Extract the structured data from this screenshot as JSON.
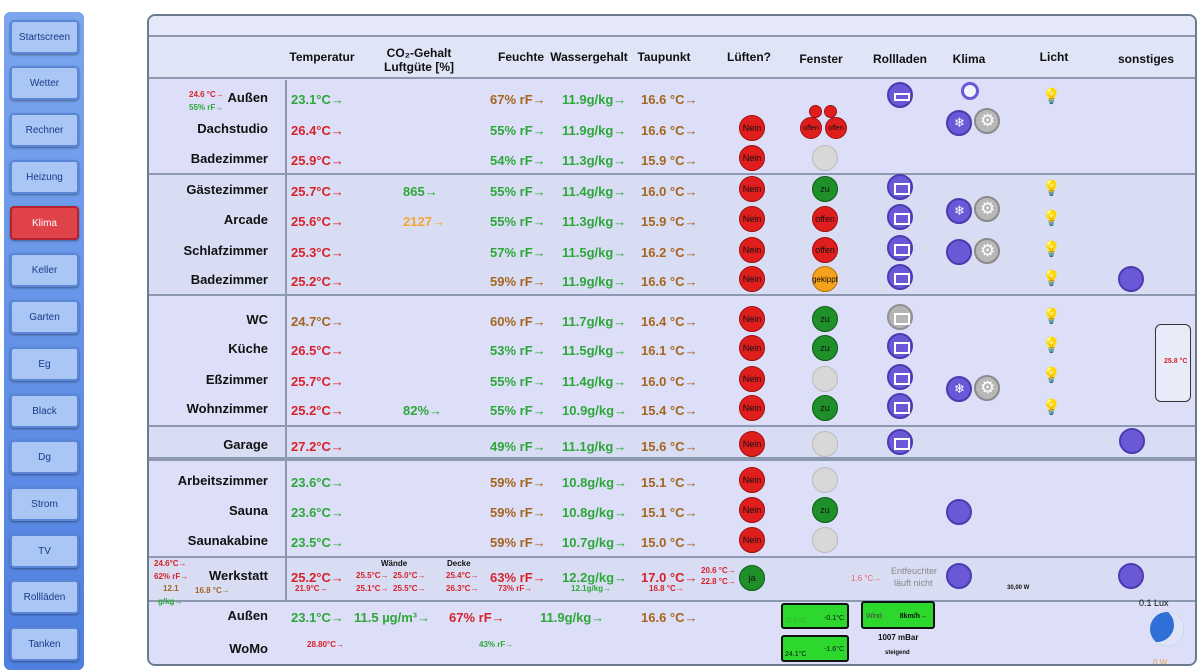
{
  "sidebar": {
    "items": [
      {
        "label": "Startscreen",
        "active": false
      },
      {
        "label": "Wetter",
        "active": false
      },
      {
        "label": "Rechner",
        "active": false
      },
      {
        "label": "Heizung",
        "active": false
      },
      {
        "label": "Klima",
        "active": true
      },
      {
        "label": "Keller",
        "active": false
      },
      {
        "label": "Garten",
        "active": false
      },
      {
        "label": "Eg",
        "active": false
      },
      {
        "label": "Black",
        "active": false
      },
      {
        "label": "Dg",
        "active": false
      },
      {
        "label": "Strom",
        "active": false
      },
      {
        "label": "TV",
        "active": false
      },
      {
        "label": "Rollläden",
        "active": false
      },
      {
        "label": "Tanken",
        "active": false
      }
    ]
  },
  "headers": {
    "temperatur": "Temperatur",
    "co2_line1": "CO₂-Gehalt",
    "co2_line2": "Luftgüte [%]",
    "feuchte": "Feuchte",
    "wassergehalt": "Wassergehalt",
    "taupunkt": "Taupunkt",
    "lueften": "Lüften?",
    "fenster": "Fenster",
    "rollladen": "Rollladen",
    "klima": "Klima",
    "licht": "Licht",
    "sonstiges": "sonstiges"
  },
  "rows": [
    {
      "room": "Außen",
      "temp": "23.1°C→",
      "temp_color": "green",
      "co2": "",
      "feuchte": "67% rF→",
      "feuchte_color": "brown",
      "wg": "11.9g/kg→",
      "tau": "16.6 °C→",
      "lueften": "",
      "fenster": "",
      "extra_temp": "24.6 °C→",
      "extra_hum": "55% rF→"
    },
    {
      "room": "Dachstudio",
      "temp": "26.4°C→",
      "temp_color": "red",
      "co2": "",
      "feuchte": "55% rF→",
      "feuchte_color": "green",
      "wg": "11.9g/kg→",
      "tau": "16.6 °C→",
      "lueften": "Nein",
      "fenster": "multi"
    },
    {
      "room": "Badezimmer",
      "temp": "25.9°C→",
      "temp_color": "red",
      "co2": "",
      "feuchte": "54% rF→",
      "feuchte_color": "green",
      "wg": "11.3g/kg→",
      "tau": "15.9 °C→",
      "lueften": "Nein",
      "fenster": "none"
    },
    {
      "room": "Gästezimmer",
      "temp": "25.7°C→",
      "temp_color": "red",
      "co2": "865→",
      "co2_color": "green",
      "feuchte": "55% rF→",
      "feuchte_color": "green",
      "wg": "11.4g/kg→",
      "tau": "16.0 °C→",
      "lueften": "Nein",
      "fenster": "zu"
    },
    {
      "room": "Arcade",
      "temp": "25.6°C→",
      "temp_color": "red",
      "co2": "2127→",
      "co2_color": "orange",
      "feuchte": "55% rF→",
      "feuchte_color": "green",
      "wg": "11.3g/kg→",
      "tau": "15.9 °C→",
      "lueften": "Nein",
      "fenster": "offen"
    },
    {
      "room": "Schlafzimmer",
      "temp": "25.3°C→",
      "temp_color": "red",
      "co2": "",
      "feuchte": "57% rF→",
      "feuchte_color": "green",
      "wg": "11.5g/kg→",
      "tau": "16.2 °C→",
      "lueften": "Nein",
      "fenster": "offen"
    },
    {
      "room": "Badezimmer",
      "temp": "25.2°C→",
      "temp_color": "red",
      "co2": "",
      "feuchte": "59% rF→",
      "feuchte_color": "brown",
      "wg": "11.9g/kg→",
      "tau": "16.6 °C→",
      "lueften": "Nein",
      "fenster": "gekippt"
    },
    {
      "room": "WC",
      "temp": "24.7°C→",
      "temp_color": "brown",
      "co2": "",
      "feuchte": "60% rF→",
      "feuchte_color": "brown",
      "wg": "11.7g/kg→",
      "tau": "16.4 °C→",
      "lueften": "Nein",
      "fenster": "zu"
    },
    {
      "room": "Küche",
      "temp": "26.5°C→",
      "temp_color": "red",
      "co2": "",
      "feuchte": "53% rF→",
      "feuchte_color": "green",
      "wg": "11.5g/kg→",
      "tau": "16.1 °C→",
      "lueften": "Nein",
      "fenster": "zu"
    },
    {
      "room": "Eßzimmer",
      "temp": "25.7°C→",
      "temp_color": "red",
      "co2": "",
      "feuchte": "55% rF→",
      "feuchte_color": "green",
      "wg": "11.4g/kg→",
      "tau": "16.0 °C→",
      "lueften": "Nein",
      "fenster": "none"
    },
    {
      "room": "Wohnzimmer",
      "temp": "25.2°C→",
      "temp_color": "red",
      "co2": "82%→",
      "co2_color": "green",
      "feuchte": "55% rF→",
      "feuchte_color": "green",
      "wg": "10.9g/kg→",
      "tau": "15.4 °C→",
      "lueften": "Nein",
      "fenster": "zu"
    },
    {
      "room": "Garage",
      "temp": "27.2°C→",
      "temp_color": "red",
      "co2": "",
      "feuchte": "49% rF→",
      "feuchte_color": "green",
      "wg": "11.1g/kg→",
      "tau": "15.6 °C→",
      "lueften": "Nein",
      "fenster": "none"
    },
    {
      "room": "Arbeitszimmer",
      "temp": "23.6°C→",
      "temp_color": "green",
      "co2": "",
      "feuchte": "59% rF→",
      "feuchte_color": "brown",
      "wg": "10.8g/kg→",
      "tau": "15.1 °C→",
      "lueften": "Nein",
      "fenster": "none"
    },
    {
      "room": "Sauna",
      "temp": "23.6°C→",
      "temp_color": "green",
      "co2": "",
      "feuchte": "59% rF→",
      "feuchte_color": "brown",
      "wg": "10.8g/kg→",
      "tau": "15.1 °C→",
      "lueften": "Nein",
      "fenster": "zu"
    },
    {
      "room": "Saunakabine",
      "temp": "23.5°C→",
      "temp_color": "green",
      "co2": "",
      "feuchte": "59% rF→",
      "feuchte_color": "brown",
      "wg": "10.7g/kg→",
      "tau": "15.0 °C→",
      "lueften": "Nein",
      "fenster": "none"
    }
  ],
  "werkstatt": {
    "room": "Werkstatt",
    "temp": "25.2°C→",
    "temp_sub": "21.9°C→",
    "side_temp": "24.6°C→",
    "side_hum": "62% rF→",
    "side_val1": "12.1",
    "side_val2": "16.8 °C→",
    "side_unit": "g/kg→",
    "waende_label": "Wände",
    "decke_label": "Decke",
    "waende1": "25.5°C→",
    "waende2": "25.0°C→",
    "waende3": "25.1°C→",
    "waende4": "25.5°C→",
    "decke1": "25.4°C→",
    "decke2": "26.3°C→",
    "feuchte": "63% rF→",
    "feuchte_sub": "73% rF→",
    "wg": "12.2g/kg→",
    "wg_sub": "12.1g/kg→",
    "tau": "17.0 °C→",
    "tau_sub": "16.8 °C→",
    "tau_side1": "20.6 °C→",
    "tau_side2": "22.8 °C→",
    "lueften": "ja",
    "entf_temp": "1.6 °C→",
    "entf_line1": "Entfeuchter",
    "entf_line2": "läuft nicht",
    "power": "30,00 W"
  },
  "aussen2": {
    "room": "Außen",
    "temp": "23.1°C→",
    "pm": "11.5 µg/m³→",
    "feuchte": "67% rF→",
    "wg": "11.9g/kg→",
    "tau": "16.6 °C→",
    "box1_right": "-0.1°C",
    "box1_left": "23.3 °C",
    "wind_label": "Wind",
    "wind_val": "8km/h→",
    "pressure": "1007 mBar",
    "trend": "steigend",
    "box3_left": "24.1°C",
    "box3_right": "-1.6°C",
    "lux": "0.1 Lux",
    "power_w": "0 W"
  },
  "womo": {
    "room": "WoMo",
    "temp": "28.80°C→",
    "hum": "43% rF→"
  },
  "sonstiges": {
    "temp": "25.8 °C"
  },
  "colors": {
    "red": "#d7222a",
    "green": "#2ea73a",
    "brown": "#a5651f",
    "orange": "#f2a634",
    "accent": "#6a58d6"
  }
}
